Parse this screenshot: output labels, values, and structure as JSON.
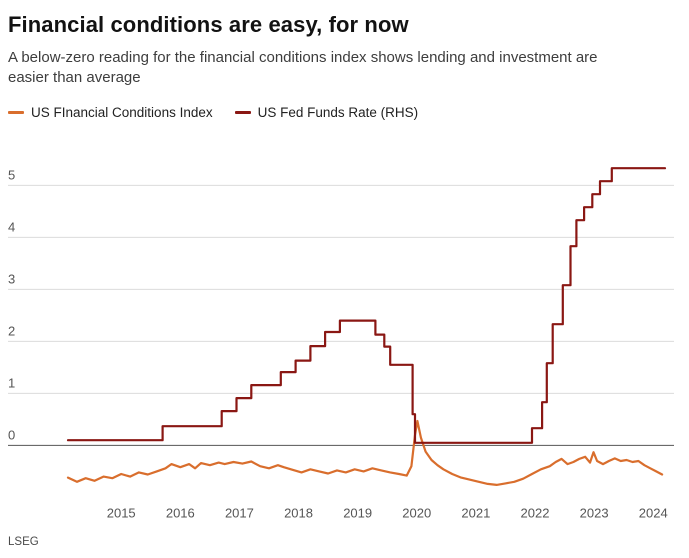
{
  "header": {
    "title": "Financial conditions are easy, for now",
    "subtitle": "A below-zero reading for the financial conditions index shows lending and investment are easier than average"
  },
  "source": "LSEG",
  "colors": {
    "fci_line": "#d96e2d",
    "fed_funds_line": "#8a1713",
    "gridline": "#dcdcdc",
    "zero_line": "#555555",
    "tick_label": "#555555"
  },
  "chart_data": {
    "type": "line",
    "title": "Financial conditions are easy, for now",
    "xlabel": "",
    "ylabel": "",
    "xlim": [
      2014.35,
      2024.5
    ],
    "ylim": [
      -1.0,
      5.45
    ],
    "x_ticks": [
      "2015",
      "2016",
      "2017",
      "2018",
      "2019",
      "2020",
      "2021",
      "2022",
      "2023",
      "2024"
    ],
    "x_tick_positions": [
      2015,
      2016,
      2017,
      2018,
      2019,
      2020,
      2021,
      2022,
      2023,
      2024
    ],
    "y_ticks": [
      "0",
      "1",
      "2",
      "3",
      "4",
      "5"
    ],
    "y_tick_values": [
      0,
      1,
      2,
      3,
      4,
      5
    ],
    "grid": true,
    "legend_position": "top-left",
    "series": [
      {
        "name": "US FInancial Conditions Index",
        "slug": "fci-line",
        "color": "#d96e2d",
        "axis": "LHS",
        "points": [
          [
            2014.35,
            -0.62
          ],
          [
            2014.5,
            -0.7
          ],
          [
            2014.65,
            -0.63
          ],
          [
            2014.8,
            -0.68
          ],
          [
            2014.95,
            -0.6
          ],
          [
            2015.1,
            -0.63
          ],
          [
            2015.25,
            -0.55
          ],
          [
            2015.4,
            -0.6
          ],
          [
            2015.55,
            -0.52
          ],
          [
            2015.7,
            -0.56
          ],
          [
            2015.85,
            -0.5
          ],
          [
            2016.0,
            -0.44
          ],
          [
            2016.1,
            -0.36
          ],
          [
            2016.25,
            -0.42
          ],
          [
            2016.4,
            -0.36
          ],
          [
            2016.5,
            -0.44
          ],
          [
            2016.6,
            -0.34
          ],
          [
            2016.75,
            -0.38
          ],
          [
            2016.9,
            -0.33
          ],
          [
            2017.0,
            -0.36
          ],
          [
            2017.15,
            -0.32
          ],
          [
            2017.3,
            -0.35
          ],
          [
            2017.45,
            -0.31
          ],
          [
            2017.6,
            -0.4
          ],
          [
            2017.75,
            -0.44
          ],
          [
            2017.9,
            -0.38
          ],
          [
            2018.0,
            -0.42
          ],
          [
            2018.15,
            -0.47
          ],
          [
            2018.3,
            -0.52
          ],
          [
            2018.45,
            -0.46
          ],
          [
            2018.6,
            -0.5
          ],
          [
            2018.75,
            -0.54
          ],
          [
            2018.9,
            -0.48
          ],
          [
            2019.05,
            -0.52
          ],
          [
            2019.2,
            -0.46
          ],
          [
            2019.35,
            -0.5
          ],
          [
            2019.5,
            -0.44
          ],
          [
            2019.65,
            -0.48
          ],
          [
            2019.8,
            -0.52
          ],
          [
            2019.95,
            -0.55
          ],
          [
            2020.08,
            -0.58
          ],
          [
            2020.16,
            -0.4
          ],
          [
            2020.22,
            0.2
          ],
          [
            2020.26,
            0.47
          ],
          [
            2020.32,
            0.15
          ],
          [
            2020.4,
            -0.12
          ],
          [
            2020.5,
            -0.28
          ],
          [
            2020.6,
            -0.38
          ],
          [
            2020.7,
            -0.46
          ],
          [
            2020.85,
            -0.55
          ],
          [
            2021.0,
            -0.62
          ],
          [
            2021.15,
            -0.66
          ],
          [
            2021.3,
            -0.7
          ],
          [
            2021.45,
            -0.74
          ],
          [
            2021.6,
            -0.76
          ],
          [
            2021.75,
            -0.73
          ],
          [
            2021.9,
            -0.7
          ],
          [
            2022.05,
            -0.64
          ],
          [
            2022.2,
            -0.55
          ],
          [
            2022.35,
            -0.46
          ],
          [
            2022.5,
            -0.4
          ],
          [
            2022.6,
            -0.32
          ],
          [
            2022.7,
            -0.26
          ],
          [
            2022.8,
            -0.36
          ],
          [
            2022.9,
            -0.32
          ],
          [
            2023.0,
            -0.26
          ],
          [
            2023.1,
            -0.22
          ],
          [
            2023.18,
            -0.33
          ],
          [
            2023.24,
            -0.13
          ],
          [
            2023.3,
            -0.3
          ],
          [
            2023.4,
            -0.36
          ],
          [
            2023.5,
            -0.3
          ],
          [
            2023.6,
            -0.25
          ],
          [
            2023.7,
            -0.3
          ],
          [
            2023.8,
            -0.28
          ],
          [
            2023.9,
            -0.32
          ],
          [
            2024.0,
            -0.3
          ],
          [
            2024.1,
            -0.38
          ],
          [
            2024.2,
            -0.44
          ],
          [
            2024.3,
            -0.5
          ],
          [
            2024.4,
            -0.56
          ]
        ]
      },
      {
        "name": "US Fed Funds Rate (RHS)",
        "slug": "fed-funds-line",
        "color": "#8a1713",
        "axis": "RHS",
        "points": [
          [
            2014.35,
            0.1
          ],
          [
            2015.95,
            0.1
          ],
          [
            2015.95,
            0.37
          ],
          [
            2016.95,
            0.37
          ],
          [
            2016.95,
            0.66
          ],
          [
            2017.2,
            0.66
          ],
          [
            2017.2,
            0.91
          ],
          [
            2017.45,
            0.91
          ],
          [
            2017.45,
            1.16
          ],
          [
            2017.95,
            1.16
          ],
          [
            2017.95,
            1.41
          ],
          [
            2018.2,
            1.41
          ],
          [
            2018.2,
            1.63
          ],
          [
            2018.45,
            1.63
          ],
          [
            2018.45,
            1.91
          ],
          [
            2018.7,
            1.91
          ],
          [
            2018.7,
            2.18
          ],
          [
            2018.95,
            2.18
          ],
          [
            2018.95,
            2.4
          ],
          [
            2019.55,
            2.4
          ],
          [
            2019.55,
            2.13
          ],
          [
            2019.7,
            2.13
          ],
          [
            2019.7,
            1.9
          ],
          [
            2019.8,
            1.9
          ],
          [
            2019.8,
            1.55
          ],
          [
            2020.18,
            1.55
          ],
          [
            2020.18,
            0.6
          ],
          [
            2020.22,
            0.6
          ],
          [
            2020.22,
            0.05
          ],
          [
            2022.2,
            0.05
          ],
          [
            2022.2,
            0.33
          ],
          [
            2022.37,
            0.33
          ],
          [
            2022.37,
            0.83
          ],
          [
            2022.45,
            0.83
          ],
          [
            2022.45,
            1.58
          ],
          [
            2022.55,
            1.58
          ],
          [
            2022.55,
            2.33
          ],
          [
            2022.72,
            2.33
          ],
          [
            2022.72,
            3.08
          ],
          [
            2022.85,
            3.08
          ],
          [
            2022.85,
            3.83
          ],
          [
            2022.95,
            3.83
          ],
          [
            2022.95,
            4.33
          ],
          [
            2023.08,
            4.33
          ],
          [
            2023.08,
            4.58
          ],
          [
            2023.22,
            4.58
          ],
          [
            2023.22,
            4.83
          ],
          [
            2023.35,
            4.83
          ],
          [
            2023.35,
            5.08
          ],
          [
            2023.55,
            5.08
          ],
          [
            2023.55,
            5.33
          ],
          [
            2024.45,
            5.33
          ]
        ]
      }
    ]
  }
}
